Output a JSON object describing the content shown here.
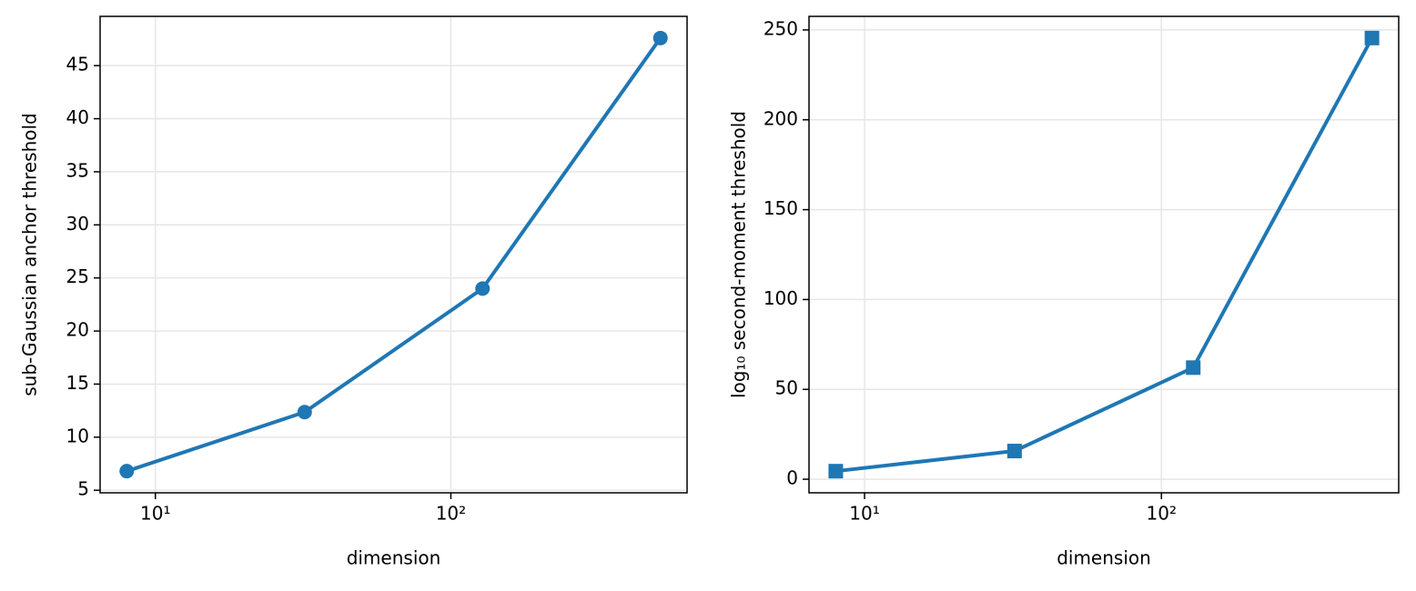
{
  "chart_data": [
    {
      "type": "line",
      "xlabel": "dimension",
      "ylabel": "sub-Gaussian anchor threshold",
      "x": [
        8,
        32,
        128,
        512
      ],
      "values": [
        6.8,
        12.36,
        24.0,
        47.6
      ],
      "color": "#1f77b4",
      "marker": "circle",
      "xscale": "log",
      "xlim": [
        6.5,
        630
      ],
      "xticks": [
        {
          "value": 10,
          "label": "10¹"
        },
        {
          "value": 100,
          "label": "10²"
        }
      ],
      "ylim": [
        4.76,
        49.64
      ],
      "yticks": [
        5,
        10,
        15,
        20,
        25,
        30,
        35,
        40,
        45
      ],
      "grid": true
    },
    {
      "type": "line",
      "xlabel": "dimension",
      "ylabel": "log₁₀ second-moment threshold",
      "x": [
        8,
        32,
        128,
        512
      ],
      "values": [
        4.5,
        15.7,
        62.1,
        245.5
      ],
      "color": "#1f77b4",
      "marker": "square",
      "xscale": "log",
      "xlim": [
        6.5,
        630
      ],
      "xticks": [
        {
          "value": 10,
          "label": "10¹"
        },
        {
          "value": 100,
          "label": "10²"
        }
      ],
      "ylim": [
        -7.55,
        257.55
      ],
      "yticks": [
        0,
        50,
        100,
        150,
        200,
        250
      ],
      "grid": true
    }
  ]
}
